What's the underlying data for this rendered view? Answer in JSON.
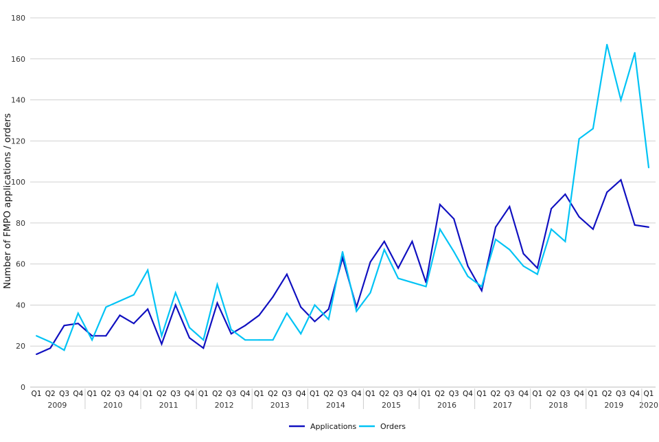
{
  "chart_data": {
    "type": "line",
    "title": "",
    "xlabel": "",
    "ylabel": "Number of FMPO applications / orders",
    "ylim": [
      0,
      180
    ],
    "yticks": [
      0,
      20,
      40,
      60,
      80,
      100,
      120,
      140,
      160,
      180
    ],
    "grid": "horizontal",
    "legend_position": "bottom",
    "years": [
      "2009",
      "2010",
      "2011",
      "2012",
      "2013",
      "2014",
      "2015",
      "2016",
      "2017",
      "2018",
      "2019",
      "2020"
    ],
    "quarters": [
      "Q1",
      "Q2",
      "Q3",
      "Q4"
    ],
    "x": [
      "2009 Q1",
      "2009 Q2",
      "2009 Q3",
      "2009 Q4",
      "2010 Q1",
      "2010 Q2",
      "2010 Q3",
      "2010 Q4",
      "2011 Q1",
      "2011 Q2",
      "2011 Q3",
      "2011 Q4",
      "2012 Q1",
      "2012 Q2",
      "2012 Q3",
      "2012 Q4",
      "2013 Q1",
      "2013 Q2",
      "2013 Q3",
      "2013 Q4",
      "2014 Q1",
      "2014 Q2",
      "2014 Q3",
      "2014 Q4",
      "2015 Q1",
      "2015 Q2",
      "2015 Q3",
      "2015 Q4",
      "2016 Q1",
      "2016 Q2",
      "2016 Q3",
      "2016 Q4",
      "2017 Q1",
      "2017 Q2",
      "2017 Q3",
      "2017 Q4",
      "2018 Q1",
      "2018 Q2",
      "2018 Q3",
      "2018 Q4",
      "2019 Q1",
      "2019 Q2",
      "2019 Q3",
      "2019 Q4",
      "2020 Q1"
    ],
    "series": [
      {
        "name": "Applications",
        "color": "#1010c0",
        "values": [
          16,
          19,
          30,
          31,
          25,
          25,
          35,
          31,
          38,
          21,
          40,
          24,
          19,
          41,
          26,
          30,
          35,
          44,
          55,
          39,
          32,
          38,
          63,
          39,
          61,
          71,
          58,
          71,
          51,
          89,
          82,
          59,
          47,
          78,
          88,
          65,
          58,
          87,
          94,
          83,
          77,
          95,
          101,
          79,
          78
        ]
      },
      {
        "name": "Orders",
        "color": "#00c3f5",
        "values": [
          25,
          22,
          18,
          36,
          23,
          39,
          42,
          45,
          57,
          25,
          46,
          29,
          23,
          50,
          28,
          23,
          23,
          23,
          36,
          26,
          40,
          33,
          66,
          37,
          46,
          67,
          53,
          51,
          49,
          77,
          66,
          54,
          49,
          72,
          67,
          59,
          55,
          77,
          71,
          121,
          126,
          167,
          140,
          163,
          107
        ]
      }
    ]
  }
}
